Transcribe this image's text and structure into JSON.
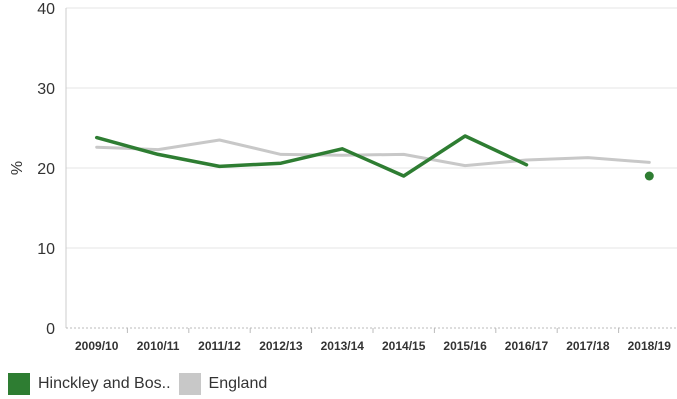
{
  "chart_data": {
    "type": "line",
    "ylabel": "%",
    "ylim": [
      0,
      40
    ],
    "yticks": [
      0,
      10,
      20,
      30,
      40
    ],
    "categories": [
      "2009/10",
      "2010/11",
      "2011/12",
      "2012/13",
      "2013/14",
      "2014/15",
      "2015/16",
      "2016/17",
      "2017/18",
      "2018/19"
    ],
    "series": [
      {
        "name": "Hinckley and Bos..",
        "color": "#2e7d32",
        "values": [
          23.8,
          21.7,
          20.2,
          20.6,
          22.4,
          19.0,
          24.0,
          20.4,
          null,
          null
        ],
        "points": [
          {
            "category": "2018/19",
            "value": 19.0
          }
        ]
      },
      {
        "name": "England",
        "color": "#c8c8c8",
        "values": [
          22.6,
          22.3,
          23.5,
          21.7,
          21.6,
          21.7,
          20.3,
          21.0,
          21.3,
          20.7
        ]
      }
    ],
    "grid": "horizontal",
    "legend_position": "bottom-left"
  }
}
